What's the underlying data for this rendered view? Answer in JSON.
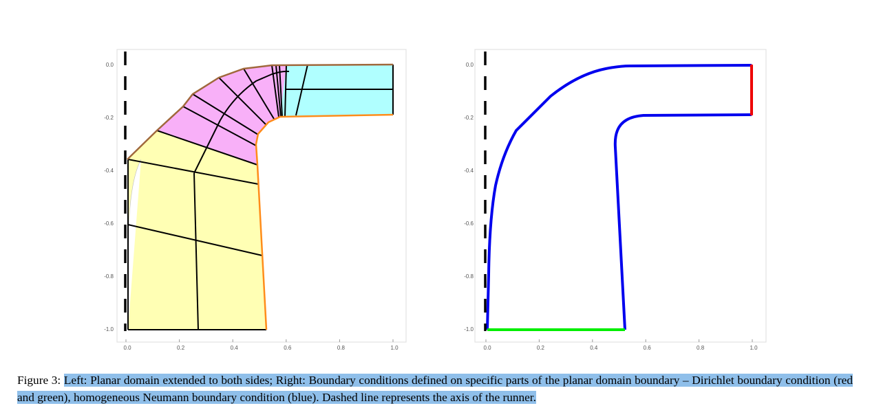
{
  "figure": {
    "left": {
      "xticks": [
        "0.0",
        "0.2",
        "0.4",
        "0.6",
        "0.8",
        "1.0"
      ],
      "yticks": [
        "0.0",
        "-0.2",
        "-0.4",
        "-0.6",
        "-0.8",
        "-1.0"
      ]
    },
    "right": {
      "xticks": [
        "0.0",
        "0.2",
        "0.4",
        "0.6",
        "0.8",
        "1.0"
      ],
      "yticks": [
        "0.0",
        "-0.2",
        "-0.4",
        "-0.6",
        "-0.8",
        "-1.0"
      ]
    }
  },
  "caption": {
    "label": "Figure 3:",
    "text": "Left: Planar domain extended to both sides; Right: Boundary conditions defined on specific parts of the planar domain boundary – Dirichlet boundary condition (red and green), homogeneous Neumann boundary condition (blue). Dashed line represents the axis of the runner."
  }
}
